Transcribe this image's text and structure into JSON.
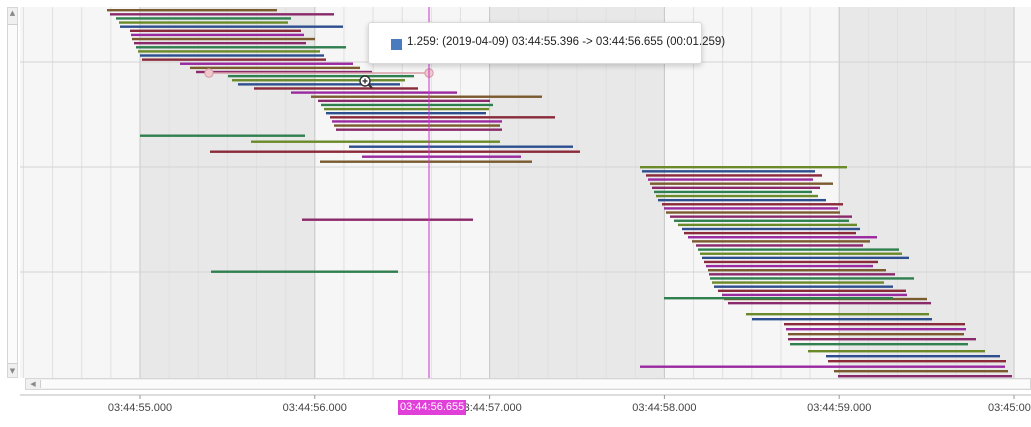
{
  "timeline": {
    "tick_labels": [
      "03:44:55.000",
      "03:44:56.000",
      "03:44:57.000",
      "03:44:58.000",
      "03:44:59.000",
      "03:45:00.0"
    ],
    "cursor_label": "03:44:56.655",
    "colors": {
      "background_light": "#f6f6f6",
      "background_band": "#e8e8e8",
      "cursor": "#cc33cc",
      "cursor_label_bg": "#e040d8"
    },
    "tooltip": {
      "swatch_color": "#4a7bbf",
      "text": "1.259: (2019-04-09) 03:44:55.396 -> 03:44:56.655 (00:01.259)"
    },
    "bar_colors": [
      "#7a5a2e",
      "#8a2a6a",
      "#2f7f4f",
      "#6a8a2a",
      "#2e4f8f",
      "#8a2a3a",
      "#9a2aa0"
    ]
  }
}
